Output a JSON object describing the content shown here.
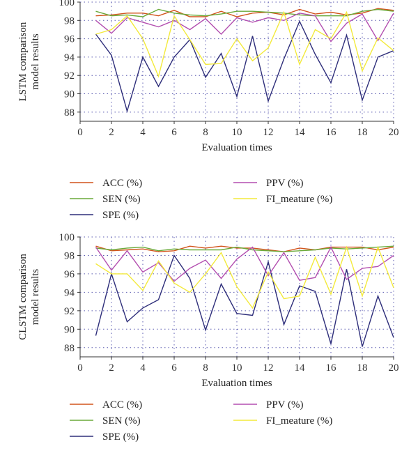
{
  "chart_data": [
    {
      "type": "line",
      "ylabel_lines": [
        "LSTM comparison",
        "model results"
      ],
      "xlabel": "Evaluation times",
      "xlim": [
        0,
        20
      ],
      "ylim": [
        87,
        100
      ],
      "xticks": [
        0,
        2,
        4,
        6,
        8,
        10,
        12,
        14,
        16,
        18,
        20
      ],
      "yticks": [
        88,
        90,
        92,
        94,
        96,
        98,
        100
      ],
      "grid": true,
      "legend_position": "bottom",
      "x": [
        1,
        2,
        3,
        4,
        5,
        6,
        7,
        8,
        9,
        10,
        11,
        12,
        13,
        14,
        15,
        16,
        17,
        18,
        19,
        20
      ],
      "series": [
        {
          "name": "ACC (%)",
          "color": "#d2541c",
          "values": [
            98.5,
            98.6,
            98.8,
            98.8,
            98.5,
            99.1,
            98.4,
            98.4,
            99.0,
            98.4,
            98.8,
            98.9,
            98.6,
            99.2,
            98.7,
            98.9,
            98.6,
            98.8,
            99.3,
            99.1
          ]
        },
        {
          "name": "SEN (%)",
          "color": "#6aaa3a",
          "values": [
            99.0,
            98.5,
            98.6,
            98.4,
            99.2,
            98.8,
            98.6,
            98.5,
            98.7,
            99.0,
            99.0,
            98.9,
            98.8,
            98.6,
            98.5,
            98.5,
            98.5,
            99.0,
            99.2,
            99.0
          ]
        },
        {
          "name": "SPE (%)",
          "color": "#2e2e7a",
          "values": [
            96.5,
            94.2,
            88.1,
            94.0,
            90.8,
            94.0,
            95.9,
            91.8,
            94.4,
            89.7,
            96.3,
            89.2,
            93.8,
            97.9,
            94.3,
            91.2,
            96.4,
            89.3,
            94.0,
            94.7
          ]
        },
        {
          "name": "PPV (%)",
          "color": "#b34fb0",
          "values": [
            98.0,
            96.6,
            98.3,
            97.8,
            97.3,
            98.0,
            97.0,
            98.2,
            96.5,
            98.3,
            97.8,
            98.3,
            98.0,
            98.8,
            98.5,
            95.7,
            97.7,
            98.7,
            95.8,
            98.8
          ]
        },
        {
          "name": "FI_meature (%)",
          "color": "#f3ea3c",
          "values": [
            96.5,
            97.0,
            98.5,
            96.0,
            91.9,
            98.5,
            95.9,
            93.2,
            93.3,
            96.0,
            93.6,
            95.0,
            98.9,
            93.2,
            97.0,
            96.0,
            98.9,
            92.5,
            96.1,
            94.7
          ]
        }
      ]
    },
    {
      "type": "line",
      "ylabel_lines": [
        "CLSTM comparison",
        "model results"
      ],
      "xlabel": "Evaluation times",
      "xlim": [
        0,
        20
      ],
      "ylim": [
        87,
        100
      ],
      "xticks": [
        0,
        2,
        4,
        6,
        8,
        10,
        12,
        14,
        16,
        18,
        20
      ],
      "yticks": [
        88,
        90,
        92,
        94,
        96,
        98,
        100
      ],
      "grid": true,
      "legend_position": "bottom",
      "x": [
        1,
        2,
        3,
        4,
        5,
        6,
        7,
        8,
        9,
        10,
        11,
        12,
        13,
        14,
        15,
        16,
        17,
        18,
        19,
        20
      ],
      "series": [
        {
          "name": "ACC (%)",
          "color": "#d2541c",
          "values": [
            99.0,
            98.5,
            98.6,
            98.7,
            98.4,
            98.5,
            99.0,
            98.8,
            99.0,
            98.8,
            98.8,
            98.6,
            98.4,
            98.8,
            98.6,
            98.9,
            98.9,
            98.9,
            98.6,
            98.9
          ]
        },
        {
          "name": "SEN (%)",
          "color": "#6aaa3a",
          "values": [
            98.8,
            98.6,
            98.8,
            98.9,
            98.5,
            98.7,
            98.6,
            98.6,
            98.6,
            98.9,
            98.6,
            98.5,
            98.4,
            98.5,
            98.6,
            98.8,
            98.7,
            98.8,
            98.9,
            99.0
          ]
        },
        {
          "name": "SPE (%)",
          "color": "#2e2e7a",
          "values": [
            89.3,
            96.0,
            90.8,
            92.3,
            93.2,
            98.0,
            95.5,
            89.9,
            94.9,
            91.7,
            91.5,
            97.3,
            90.5,
            94.7,
            94.1,
            88.4,
            96.5,
            88.1,
            93.6,
            89.1
          ]
        },
        {
          "name": "PPV (%)",
          "color": "#b34fb0",
          "values": [
            98.9,
            96.4,
            98.5,
            96.2,
            97.2,
            95.2,
            96.6,
            97.5,
            95.5,
            97.6,
            98.9,
            95.8,
            98.3,
            95.3,
            95.6,
            98.9,
            95.4,
            96.6,
            96.8,
            98.0
          ]
        },
        {
          "name": "FI_meature (%)",
          "color": "#f3ea3c",
          "values": [
            97.1,
            96.0,
            96.0,
            94.2,
            97.4,
            95.0,
            94.0,
            96.0,
            98.3,
            94.6,
            92.3,
            96.2,
            93.3,
            93.6,
            97.8,
            93.8,
            98.9,
            93.6,
            98.9,
            94.5
          ]
        }
      ]
    }
  ]
}
